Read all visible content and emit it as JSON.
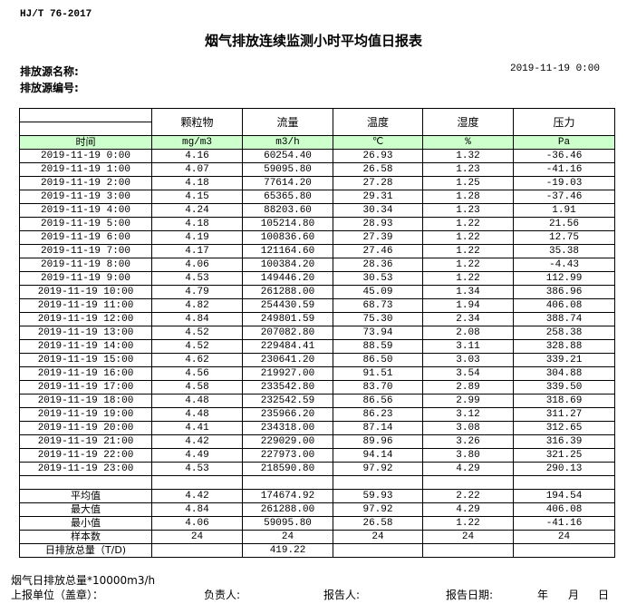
{
  "standard": "HJ/T  76-2017",
  "title": "烟气排放连续监测小时平均值日报表",
  "source_name_label": "排放源名称:",
  "source_code_label": "排放源编号:",
  "report_date": "2019-11-19 0:00",
  "columns": [
    {
      "name": "颗粒物",
      "unit": "mg/m3"
    },
    {
      "name": "流量",
      "unit": "m3/h"
    },
    {
      "name": "温度",
      "unit": "℃"
    },
    {
      "name": "湿度",
      "unit": "%"
    },
    {
      "name": "压力",
      "unit": "Pa"
    }
  ],
  "time_header": "时间",
  "rows": [
    [
      "2019-11-19 0:00",
      "4.16",
      "60254.40",
      "26.93",
      "1.32",
      "-36.46"
    ],
    [
      "2019-11-19 1:00",
      "4.07",
      "59095.80",
      "26.58",
      "1.23",
      "-41.16"
    ],
    [
      "2019-11-19 2:00",
      "4.18",
      "77614.20",
      "27.28",
      "1.25",
      "-19.03"
    ],
    [
      "2019-11-19 3:00",
      "4.15",
      "65365.80",
      "29.31",
      "1.28",
      "-37.46"
    ],
    [
      "2019-11-19 4:00",
      "4.24",
      "88203.60",
      "30.34",
      "1.23",
      "1.91"
    ],
    [
      "2019-11-19 5:00",
      "4.18",
      "105214.80",
      "28.93",
      "1.22",
      "21.56"
    ],
    [
      "2019-11-19 6:00",
      "4.19",
      "100836.60",
      "27.39",
      "1.22",
      "12.75"
    ],
    [
      "2019-11-19 7:00",
      "4.17",
      "121164.60",
      "27.46",
      "1.22",
      "35.38"
    ],
    [
      "2019-11-19 8:00",
      "4.06",
      "100384.20",
      "28.36",
      "1.22",
      "-4.43"
    ],
    [
      "2019-11-19 9:00",
      "4.53",
      "149446.20",
      "30.53",
      "1.22",
      "112.99"
    ],
    [
      "2019-11-19 10:00",
      "4.79",
      "261288.00",
      "45.09",
      "1.34",
      "386.96"
    ],
    [
      "2019-11-19 11:00",
      "4.82",
      "254430.59",
      "68.73",
      "1.94",
      "406.08"
    ],
    [
      "2019-11-19 12:00",
      "4.84",
      "249801.59",
      "75.30",
      "2.34",
      "388.74"
    ],
    [
      "2019-11-19 13:00",
      "4.52",
      "207082.80",
      "73.94",
      "2.08",
      "258.38"
    ],
    [
      "2019-11-19 14:00",
      "4.52",
      "229484.41",
      "88.59",
      "3.11",
      "328.88"
    ],
    [
      "2019-11-19 15:00",
      "4.62",
      "230641.20",
      "86.50",
      "3.03",
      "339.21"
    ],
    [
      "2019-11-19 16:00",
      "4.56",
      "219927.00",
      "91.51",
      "3.54",
      "304.88"
    ],
    [
      "2019-11-19 17:00",
      "4.58",
      "233542.80",
      "83.70",
      "2.89",
      "339.50"
    ],
    [
      "2019-11-19 18:00",
      "4.48",
      "232542.59",
      "86.56",
      "2.99",
      "318.69"
    ],
    [
      "2019-11-19 19:00",
      "4.48",
      "235966.20",
      "86.23",
      "3.12",
      "311.27"
    ],
    [
      "2019-11-19 20:00",
      "4.41",
      "234318.00",
      "87.14",
      "3.08",
      "312.65"
    ],
    [
      "2019-11-19 21:00",
      "4.42",
      "229029.00",
      "89.96",
      "3.26",
      "316.39"
    ],
    [
      "2019-11-19 22:00",
      "4.49",
      "227973.00",
      "94.14",
      "3.80",
      "321.25"
    ],
    [
      "2019-11-19 23:00",
      "4.53",
      "218590.80",
      "97.92",
      "4.29",
      "290.13"
    ]
  ],
  "summary": [
    [
      "平均值",
      "4.42",
      "174674.92",
      "59.93",
      "2.22",
      "194.54"
    ],
    [
      "最大值",
      "4.84",
      "261288.00",
      "97.92",
      "4.29",
      "406.08"
    ],
    [
      "最小值",
      "4.06",
      "59095.80",
      "26.58",
      "1.22",
      "-41.16"
    ],
    [
      "样本数",
      "24",
      "24",
      "24",
      "24",
      "24"
    ],
    [
      "日排放总量（T/D)",
      "",
      "419.22",
      "",
      "",
      ""
    ]
  ],
  "footer": {
    "note": "烟气日排放总量*10000m3/h",
    "unit_label": "上报单位（盖章）：",
    "responsible_label": "负责人:",
    "reporter_label": "报告人:",
    "report_date_label": "报告日期:",
    "year": "年",
    "month": "月",
    "day": "日"
  },
  "colors": {
    "header_green": "#ccffcc"
  }
}
